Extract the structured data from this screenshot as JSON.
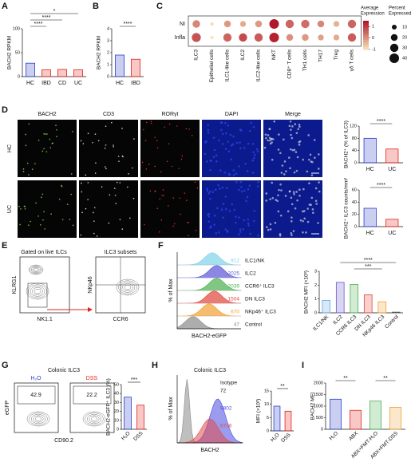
{
  "panels": {
    "A": {
      "label": "A",
      "chart": {
        "ylabel": "BACH2 RPKM",
        "categories": [
          "HC",
          "IBD",
          "CD",
          "UC"
        ],
        "values": [
          28,
          14,
          15,
          14
        ],
        "colors": [
          "#2b3fc9",
          "#e0241b",
          "#e0241b",
          "#e0241b"
        ],
        "ylim": [
          0,
          100
        ],
        "yticks": [
          0,
          50,
          100
        ],
        "significance": [
          "****",
          "****",
          "*"
        ]
      }
    },
    "B": {
      "label": "B",
      "chart": {
        "ylabel": "BACH2 RPKM",
        "categories": [
          "HC",
          "IBD"
        ],
        "values": [
          1.8,
          1.45
        ],
        "colors": [
          "#2b3fc9",
          "#e0241b"
        ],
        "ylim": [
          0,
          4
        ],
        "yticks": [
          0,
          1,
          2,
          3,
          4
        ],
        "significance": [
          "****"
        ]
      }
    },
    "C": {
      "label": "C",
      "rows": [
        "NI",
        "Infla"
      ],
      "columns": [
        "ILC3",
        "Epithelial cells",
        "ILC1-like cells",
        "ILC2",
        "ILC2-like cells",
        "NKT",
        "CD8⁺ T cells",
        "TH1 cells",
        "TH17",
        "Treg",
        "γδ T cells"
      ],
      "expression": [
        [
          0.2,
          -0.8,
          0.0,
          -0.2,
          0.0,
          1.5,
          0.6,
          0.5,
          0.2,
          -0.3,
          0.6
        ],
        [
          0.8,
          -0.9,
          0.6,
          0.9,
          0.7,
          1.4,
          0.1,
          0.0,
          -0.1,
          -0.2,
          0.7
        ]
      ],
      "percent": [
        [
          25,
          5,
          20,
          15,
          20,
          40,
          30,
          30,
          20,
          15,
          30
        ],
        [
          35,
          5,
          30,
          30,
          30,
          40,
          20,
          20,
          15,
          15,
          30
        ]
      ],
      "expression_title": [
        "Average",
        "Expression"
      ],
      "expression_lim": [
        -1,
        1.5
      ],
      "expression_ticks": [
        1,
        0,
        -1
      ],
      "percent_title": [
        "Percent",
        "Expressed"
      ],
      "percent_ticks": [
        10,
        20,
        30,
        40
      ]
    },
    "D": {
      "label": "D",
      "columns": [
        "BACH2",
        "CD3",
        "RORγt",
        "DAPI",
        "Merge"
      ],
      "rows": [
        "HC",
        "UC"
      ],
      "charts": [
        {
          "ylabel": "BACH2⁺ (% of ILC3)",
          "categories": [
            "HC",
            "UC"
          ],
          "values": [
            80,
            45
          ],
          "colors": [
            "#2b3fc9",
            "#e0241b"
          ],
          "ylim": [
            0,
            120
          ],
          "yticks": [
            0,
            40,
            80,
            120
          ],
          "significance": [
            "****"
          ]
        },
        {
          "ylabel": "BACH2⁺ ILC3 counts/mm²",
          "categories": [
            "HC",
            "UC"
          ],
          "values": [
            30,
            12
          ],
          "colors": [
            "#2b3fc9",
            "#e0241b"
          ],
          "ylim": [
            0,
            60
          ],
          "yticks": [
            0,
            20,
            40,
            60
          ],
          "significance": [
            "****"
          ]
        }
      ]
    },
    "E": {
      "label": "E",
      "left": {
        "title": "Gated on live ILCs",
        "ylabel": "KLRG1",
        "xlabel": "NK1.1"
      },
      "right": {
        "title": "ILC3 subsets",
        "ylabel": "NKp46",
        "xlabel": "CCR6"
      }
    },
    "F": {
      "label": "F",
      "histogram": {
        "ylabel": "% of Max",
        "xlabel": "BACH2-eGFP",
        "rows": [
          {
            "name": "ILC1/NK",
            "value": 912,
            "color": "#7fd3ea"
          },
          {
            "name": "ILC2",
            "value": 2025,
            "color": "#5a54d6"
          },
          {
            "name": "CCR6⁺ ILC3",
            "value": 2039,
            "color": "#4caf50"
          },
          {
            "name": "DN ILC3",
            "value": 1504,
            "color": "#e0463a"
          },
          {
            "name": "NKp46⁺ ILC3",
            "value": 670,
            "color": "#f0a030"
          },
          {
            "name": "Control",
            "value": 47,
            "color": "#8a8a8a"
          }
        ]
      },
      "chart": {
        "ylabel": "BACH2 MFI (×10³)",
        "categories": [
          "ILC1/NK",
          "ILC2",
          "CCR6 ILC3",
          "DN ILC3",
          "NKp46 ILC3",
          "Control"
        ],
        "values": [
          0.9,
          2.2,
          2.05,
          1.3,
          0.8,
          0.05
        ],
        "colors": [
          "#5fa8e8",
          "#6a5acd",
          "#4caf50",
          "#e0463a",
          "#f0a030",
          "#555555"
        ],
        "ylim": [
          0,
          3
        ],
        "yticks": [
          0,
          1,
          2,
          3
        ],
        "significance": [
          "****",
          "***"
        ]
      }
    },
    "G": {
      "label": "G",
      "title": "Colonic ILC3",
      "plots": [
        {
          "name": "H₂O",
          "value": 42.9,
          "color": "#2b3fc9"
        },
        {
          "name": "DSS",
          "value": 22.2,
          "color": "#e0241b"
        }
      ],
      "ylabel": "eGFP",
      "xlabel": "CD90.2",
      "chart": {
        "ylabel": "BACH2-eGFP⁺ ILC3 (%)",
        "categories": [
          "H₂O",
          "DSS"
        ],
        "values": [
          36,
          27
        ],
        "colors": [
          "#2b3fc9",
          "#e0241b"
        ],
        "ylim": [
          0,
          50
        ],
        "yticks": [
          0,
          10,
          20,
          30,
          40,
          50
        ],
        "significance": [
          "***"
        ]
      }
    },
    "H": {
      "label": "H",
      "title": "Colonic ILC3",
      "histogram": {
        "ylabel": "% of Max",
        "xlabel": "BACH2",
        "rows": [
          {
            "name": "Isotype",
            "value": 72,
            "color": "#8a8a8a"
          },
          {
            "value": 9802,
            "color": "#4a4ae0"
          },
          {
            "value": 6736,
            "color": "#e04a4a"
          }
        ]
      },
      "chart": {
        "ylabel": "MFI (×10³)",
        "categories": [
          "H₂O",
          "DSS"
        ],
        "values": [
          9.3,
          7.4
        ],
        "colors": [
          "#2b3fc9",
          "#e0241b"
        ],
        "ylim": [
          0,
          15
        ],
        "yticks": [
          0,
          5,
          10,
          15
        ],
        "significance": [
          "**"
        ]
      }
    },
    "I": {
      "label": "I",
      "chart": {
        "ylabel": "BACH2 MFI",
        "categories": [
          "H₂O",
          "ABX",
          "ABX+FMT-H₂O",
          "ABX+FMT-DSS"
        ],
        "values": [
          1300,
          820,
          1220,
          950
        ],
        "colors": [
          "#2b3fc9",
          "#e0241b",
          "#4caf50",
          "#f0a030"
        ],
        "ylim": [
          0,
          2000
        ],
        "yticks": [
          0,
          500,
          1000,
          1500,
          2000
        ],
        "significance": [
          "**",
          "**"
        ]
      }
    }
  }
}
